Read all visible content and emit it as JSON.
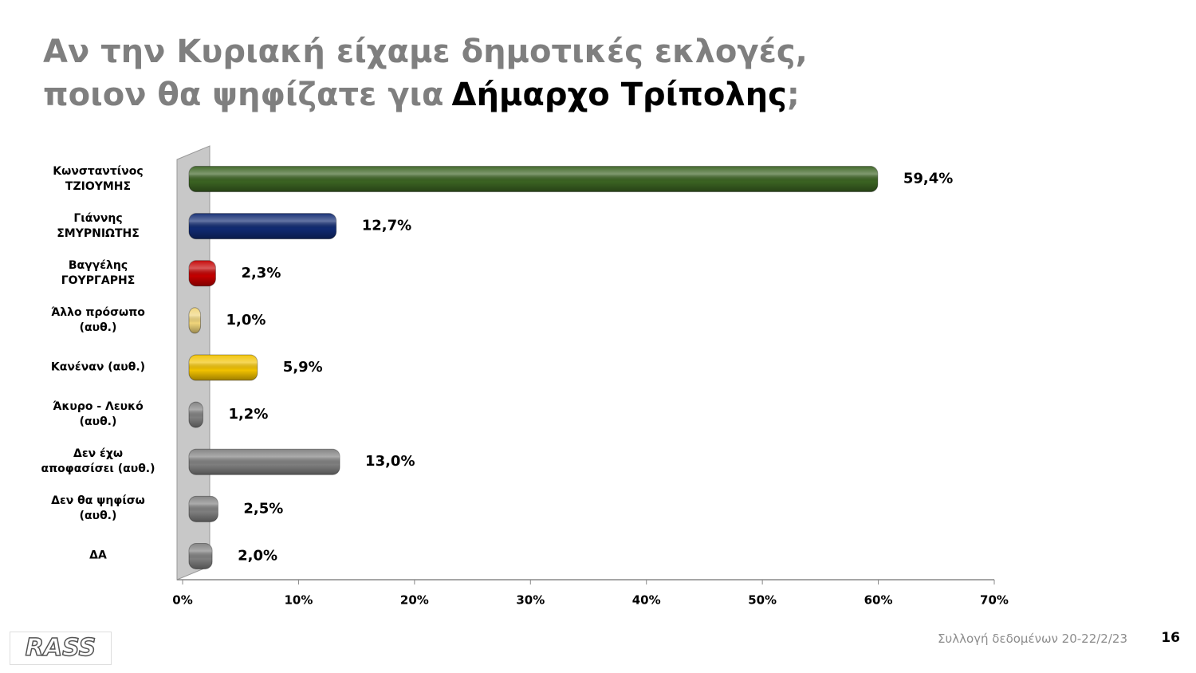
{
  "chart_data": {
    "type": "bar",
    "orientation": "horizontal",
    "title": {
      "lead": "Αν την Κυριακή είχαμε δημοτικές εκλογές,\nποιον θα ψηφίζατε για",
      "highlight": "Δήμαρχο Τρίπολης",
      "end": ";"
    },
    "categories": [
      "Κωνσταντίνος\nΤΖΙΟΥΜΗΣ",
      "Γιάννης\nΣΜΥΡΝΙΩΤΗΣ",
      "Βαγγέλης\nΓΟΥΡΓΑΡΗΣ",
      "Άλλο πρόσωπο\n(αυθ.)",
      "Κανέναν (αυθ.)",
      "Άκυρο - Λευκό\n(αυθ.)",
      "Δεν έχω\nαποφασίσει (αυθ.)",
      "Δεν θα ψηφίσω\n(αυθ.)",
      "ΔΑ"
    ],
    "values": [
      59.4,
      12.7,
      2.3,
      1.0,
      5.9,
      1.2,
      13.0,
      2.5,
      2.0
    ],
    "value_labels": [
      "59,4%",
      "12,7%",
      "2,3%",
      "1,0%",
      "5,9%",
      "1,2%",
      "13,0%",
      "2,5%",
      "2,0%"
    ],
    "colors": [
      "#3b6322",
      "#102a72",
      "#c40000",
      "#f0d57a",
      "#f2c200",
      "#7f7f7f",
      "#7f7f7f",
      "#7f7f7f",
      "#7f7f7f"
    ],
    "xlim": [
      0,
      70
    ],
    "xticks": [
      {
        "value": 0,
        "label": "0%"
      },
      {
        "value": 10,
        "label": "10%"
      },
      {
        "value": 20,
        "label": "20%"
      },
      {
        "value": 30,
        "label": "30%"
      },
      {
        "value": 40,
        "label": "40%"
      },
      {
        "value": 50,
        "label": "50%"
      },
      {
        "value": 60,
        "label": "60%"
      },
      {
        "value": 70,
        "label": "70%"
      }
    ]
  },
  "footer": {
    "source": "Συλλογή δεδομένων 20-22/2/23",
    "page": "16",
    "logo": "RASS"
  }
}
